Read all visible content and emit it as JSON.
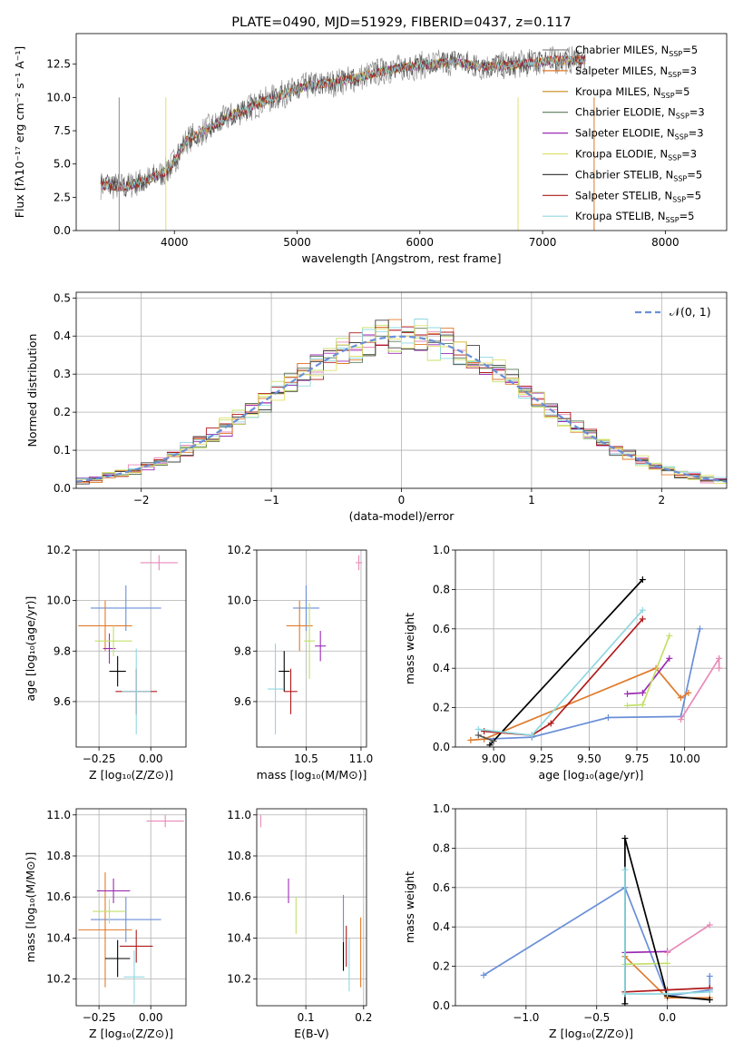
{
  "colors": [
    "#6a8fd8",
    "#e07a2a",
    "#9b2bb5",
    "#c3e06a",
    "#000000",
    "#b01a1a",
    "#8fd8e0",
    "#e88ab8",
    "#555555"
  ],
  "chart_data": [
    {
      "id": "spectrum",
      "type": "line",
      "title": "PLATE=0490, MJD=51929, FIBERID=0437, z=0.117",
      "xlabel": "wavelength [Angstrom, rest frame]",
      "ylabel": "Flux [fλ10⁻¹⁷ erg cm⁻² s⁻¹ A⁻¹]",
      "xlim": [
        3200,
        8500
      ],
      "ylim": [
        0,
        14.8
      ],
      "xticks": [
        4000,
        5000,
        6000,
        7000,
        8000
      ],
      "yticks": [
        0.0,
        2.5,
        5.0,
        7.5,
        10.0,
        12.5
      ],
      "grid": false,
      "legend_position": "right",
      "legend": [
        {
          "label": "Chabrier MILES, N_SSP=5",
          "color": "#8a8a8a"
        },
        {
          "label": "Salpeter MILES, N_SSP=3",
          "color": "#e07a2a"
        },
        {
          "label": "Kroupa MILES, N_SSP=5",
          "color": "#c98a1a"
        },
        {
          "label": "Chabrier ELODIE, N_SSP=3",
          "color": "#5a7a5a"
        },
        {
          "label": "Salpeter ELODIE, N_SSP=3",
          "color": "#9b2bb5"
        },
        {
          "label": "Kroupa ELODIE, N_SSP=3",
          "color": "#e0e06a"
        },
        {
          "label": "Chabrier STELIB, N_SSP=5",
          "color": "#444444"
        },
        {
          "label": "Salpeter STELIB, N_SSP=5",
          "color": "#b01a1a"
        },
        {
          "label": "Kroupa STELIB, N_SSP=5",
          "color": "#8fd8e0"
        }
      ],
      "continuum": [
        [
          3400,
          3.4
        ],
        [
          3600,
          3.3
        ],
        [
          3800,
          3.9
        ],
        [
          3950,
          4.5
        ],
        [
          4100,
          6.8
        ],
        [
          4300,
          7.8
        ],
        [
          4500,
          8.8
        ],
        [
          4700,
          9.6
        ],
        [
          4900,
          10.3
        ],
        [
          5100,
          10.9
        ],
        [
          5300,
          11.1
        ],
        [
          5500,
          11.5
        ],
        [
          5700,
          12.0
        ],
        [
          5900,
          12.3
        ],
        [
          6100,
          12.5
        ],
        [
          6300,
          12.7
        ],
        [
          6500,
          12.3
        ],
        [
          6700,
          12.4
        ],
        [
          6900,
          12.6
        ],
        [
          7100,
          12.8
        ],
        [
          7300,
          12.8
        ]
      ]
    },
    {
      "id": "residuals",
      "type": "line",
      "xlabel": "(data-model)/error",
      "ylabel": "Normed distribution",
      "xlim": [
        -2.5,
        2.5
      ],
      "ylim": [
        0,
        0.515
      ],
      "xticks": [
        -2,
        -1,
        0,
        1,
        2
      ],
      "yticks": [
        0.0,
        0.1,
        0.2,
        0.3,
        0.4,
        0.5
      ],
      "grid": true,
      "legend": [
        {
          "label": "𝒩(0, 1)",
          "color": "#6a8fd8"
        }
      ],
      "legend_position": "top-right"
    },
    {
      "id": "age_vs_Z",
      "type": "scatter",
      "xlabel": "Z [log₁₀(Z/Z⊙)]",
      "ylabel": "age  [log₁₀(age/yr)]",
      "xlim": [
        -0.36,
        0.17
      ],
      "ylim": [
        9.42,
        10.2
      ],
      "xticks": [
        -0.25,
        0.0
      ],
      "yticks": [
        9.6,
        9.8,
        10.0,
        10.2
      ],
      "grid": true,
      "points": [
        {
          "x": -0.12,
          "y": 9.97,
          "xerr": 0.17,
          "yerr": 0.09,
          "c": 0
        },
        {
          "x": -0.22,
          "y": 9.9,
          "xerr": 0.13,
          "yerr": 0.1,
          "c": 1
        },
        {
          "x": -0.2,
          "y": 9.81,
          "xerr": 0.03,
          "yerr": 0.06,
          "c": 2
        },
        {
          "x": -0.18,
          "y": 9.84,
          "xerr": 0.09,
          "yerr": 0.06,
          "c": 3
        },
        {
          "x": -0.16,
          "y": 9.72,
          "xerr": 0.04,
          "yerr": 0.06,
          "c": 4
        },
        {
          "x": -0.07,
          "y": 9.64,
          "xerr": 0.1,
          "yerr": 0.09,
          "c": 5
        },
        {
          "x": -0.07,
          "y": 9.64,
          "xerr": 0.07,
          "yerr": 0.17,
          "c": 6
        },
        {
          "x": 0.04,
          "y": 10.15,
          "xerr": 0.09,
          "yerr": 0.03,
          "c": 7
        }
      ]
    },
    {
      "id": "age_vs_mass",
      "type": "scatter",
      "xlabel": "mass [log₁₀(M/M⊙)]",
      "ylabel": "",
      "xlim": [
        10.05,
        11.05
      ],
      "ylim": [
        9.42,
        10.2
      ],
      "xticks": [
        10.5,
        11.0
      ],
      "yticks": [
        9.6,
        9.8,
        10.0,
        10.2
      ],
      "grid": true,
      "points": [
        {
          "x": 10.5,
          "y": 9.97,
          "xerr": 0.12,
          "yerr": 0.09,
          "c": 0
        },
        {
          "x": 10.44,
          "y": 9.9,
          "xerr": 0.12,
          "yerr": 0.1,
          "c": 1
        },
        {
          "x": 10.63,
          "y": 9.82,
          "xerr": 0.05,
          "yerr": 0.06,
          "c": 2
        },
        {
          "x": 10.53,
          "y": 9.84,
          "xerr": 0.05,
          "yerr": 0.15,
          "c": 3
        },
        {
          "x": 10.3,
          "y": 9.72,
          "xerr": 0.05,
          "yerr": 0.08,
          "c": 4
        },
        {
          "x": 10.36,
          "y": 9.64,
          "xerr": 0.06,
          "yerr": 0.09,
          "c": 5
        },
        {
          "x": 10.22,
          "y": 9.65,
          "xerr": 0.07,
          "yerr": 0.18,
          "c": 6
        },
        {
          "x": 10.98,
          "y": 10.15,
          "xerr": 0.03,
          "yerr": 0.03,
          "c": 7
        }
      ]
    },
    {
      "id": "weight_vs_age",
      "type": "line",
      "xlabel": "age  [log₁₀(age/yr)]",
      "ylabel": "mass weight",
      "xlim": [
        8.8,
        10.22
      ],
      "ylim": [
        0,
        1.0
      ],
      "xticks": [
        9.0,
        9.25,
        9.5,
        9.75,
        10.0
      ],
      "yticks": [
        0.0,
        0.2,
        0.4,
        0.6,
        0.8,
        1.0
      ],
      "grid": true,
      "series": [
        {
          "c": 0,
          "points": [
            [
              8.95,
              0.04
            ],
            [
              9.2,
              0.05
            ],
            [
              9.6,
              0.15
            ],
            [
              9.98,
              0.155
            ],
            [
              10.08,
              0.6
            ]
          ]
        },
        {
          "c": 1,
          "points": [
            [
              8.88,
              0.035
            ],
            [
              8.95,
              0.04
            ],
            [
              9.85,
              0.4
            ],
            [
              9.98,
              0.25
            ],
            [
              10.02,
              0.275
            ]
          ]
        },
        {
          "c": 2,
          "points": [
            [
              9.7,
              0.27
            ],
            [
              9.78,
              0.275
            ],
            [
              9.92,
              0.45
            ]
          ]
        },
        {
          "c": 3,
          "points": [
            [
              9.7,
              0.21
            ],
            [
              9.78,
              0.215
            ],
            [
              9.92,
              0.565
            ]
          ]
        },
        {
          "c": 4,
          "points": [
            [
              8.98,
              0.01
            ],
            [
              9.78,
              0.85
            ]
          ]
        },
        {
          "c": 5,
          "points": [
            [
              8.95,
              0.08
            ],
            [
              9.2,
              0.06
            ],
            [
              9.3,
              0.12
            ],
            [
              9.78,
              0.65
            ]
          ]
        },
        {
          "c": 6,
          "points": [
            [
              8.92,
              0.09
            ],
            [
              9.2,
              0.06
            ],
            [
              9.78,
              0.695
            ]
          ]
        },
        {
          "c": 7,
          "points": [
            [
              9.98,
              0.14
            ],
            [
              10.18,
              0.45
            ],
            [
              10.18,
              0.4
            ]
          ]
        },
        {
          "c": 8,
          "points": [
            [
              8.92,
              0.06
            ],
            [
              9.0,
              0.03
            ]
          ]
        }
      ]
    },
    {
      "id": "mass_vs_Z",
      "type": "scatter",
      "xlabel": "Z [log₁₀(Z/Z⊙)]",
      "ylabel": "mass [log₁₀(M/M⊙)]",
      "xlim": [
        -0.36,
        0.17
      ],
      "ylim": [
        10.07,
        11.03
      ],
      "xticks": [
        -0.25,
        0.0
      ],
      "yticks": [
        10.2,
        10.4,
        10.6,
        10.8,
        11.0
      ],
      "grid": true,
      "points": [
        {
          "x": -0.12,
          "y": 10.49,
          "xerr": 0.17,
          "yerr": 0.11,
          "c": 0
        },
        {
          "x": -0.22,
          "y": 10.44,
          "xerr": 0.13,
          "yerr": 0.28,
          "c": 1
        },
        {
          "x": -0.18,
          "y": 10.63,
          "xerr": 0.08,
          "yerr": 0.06,
          "c": 2
        },
        {
          "x": -0.2,
          "y": 10.53,
          "xerr": 0.08,
          "yerr": 0.06,
          "c": 3
        },
        {
          "x": -0.16,
          "y": 10.3,
          "xerr": 0.06,
          "yerr": 0.09,
          "c": 4
        },
        {
          "x": -0.07,
          "y": 10.36,
          "xerr": 0.08,
          "yerr": 0.08,
          "c": 5
        },
        {
          "x": -0.08,
          "y": 10.21,
          "xerr": 0.05,
          "yerr": 0.13,
          "c": 6
        },
        {
          "x": 0.07,
          "y": 10.97,
          "xerr": 0.09,
          "yerr": 0.03,
          "c": 7
        }
      ]
    },
    {
      "id": "mass_vs_ebv",
      "type": "scatter",
      "xlabel": "E(B-V)",
      "ylabel": "",
      "xlim": [
        0.015,
        0.205
      ],
      "ylim": [
        10.07,
        11.03
      ],
      "xticks": [
        0.1,
        0.2
      ],
      "yticks": [
        10.2,
        10.4,
        10.6,
        10.8,
        11.0
      ],
      "grid": true,
      "points": [
        {
          "x": 0.165,
          "y": 10.44,
          "xerr": 0,
          "yerr": 0.17,
          "c": 0
        },
        {
          "x": 0.195,
          "y": 10.33,
          "xerr": 0,
          "yerr": 0.17,
          "c": 1
        },
        {
          "x": 0.07,
          "y": 10.63,
          "xerr": 0,
          "yerr": 0.06,
          "c": 2
        },
        {
          "x": 0.083,
          "y": 10.51,
          "xerr": 0,
          "yerr": 0.09,
          "c": 3
        },
        {
          "x": 0.165,
          "y": 10.31,
          "xerr": 0,
          "yerr": 0.07,
          "c": 4
        },
        {
          "x": 0.17,
          "y": 10.36,
          "xerr": 0,
          "yerr": 0.1,
          "c": 5
        },
        {
          "x": 0.175,
          "y": 10.27,
          "xerr": 0,
          "yerr": 0.13,
          "c": 6
        },
        {
          "x": 0.022,
          "y": 10.97,
          "xerr": 0,
          "yerr": 0.03,
          "c": 7
        }
      ]
    },
    {
      "id": "weight_vs_Z",
      "type": "line",
      "xlabel": "Z [log₁₀(Z/Z⊙)]",
      "ylabel": "mass weight",
      "xlim": [
        -1.5,
        0.42
      ],
      "ylim": [
        0,
        1.0
      ],
      "xticks": [
        -1.0,
        -0.5,
        0.0
      ],
      "yticks": [
        0.0,
        0.2,
        0.4,
        0.6,
        0.8,
        1.0
      ],
      "grid": true,
      "series": [
        {
          "c": 0,
          "points": [
            [
              -1.3,
              0.155
            ],
            [
              -0.3,
              0.6
            ],
            [
              0.0,
              0.05
            ],
            [
              0.3,
              0.08
            ],
            [
              0.3,
              0.15
            ]
          ]
        },
        {
          "c": 1,
          "points": [
            [
              -0.3,
              0.25
            ],
            [
              0.0,
              0.04
            ],
            [
              0.3,
              0.04
            ]
          ]
        },
        {
          "c": 2,
          "points": [
            [
              -0.3,
              0.27
            ],
            [
              0.0,
              0.275
            ]
          ]
        },
        {
          "c": 3,
          "points": [
            [
              -0.3,
              0.21
            ],
            [
              0.0,
              0.215
            ]
          ]
        },
        {
          "c": 4,
          "points": [
            [
              -0.3,
              0.01
            ],
            [
              -0.3,
              0.85
            ],
            [
              0.0,
              0.05
            ],
            [
              0.3,
              0.03
            ]
          ]
        },
        {
          "c": 5,
          "points": [
            [
              -0.3,
              0.07
            ],
            [
              0.0,
              0.08
            ],
            [
              0.3,
              0.09
            ]
          ]
        },
        {
          "c": 6,
          "points": [
            [
              -0.3,
              0.69
            ],
            [
              -0.3,
              0.06
            ],
            [
              0.0,
              0.06
            ],
            [
              0.3,
              0.07
            ]
          ]
        },
        {
          "c": 7,
          "points": [
            [
              0.0,
              0.27
            ],
            [
              0.3,
              0.41
            ]
          ]
        }
      ]
    }
  ]
}
